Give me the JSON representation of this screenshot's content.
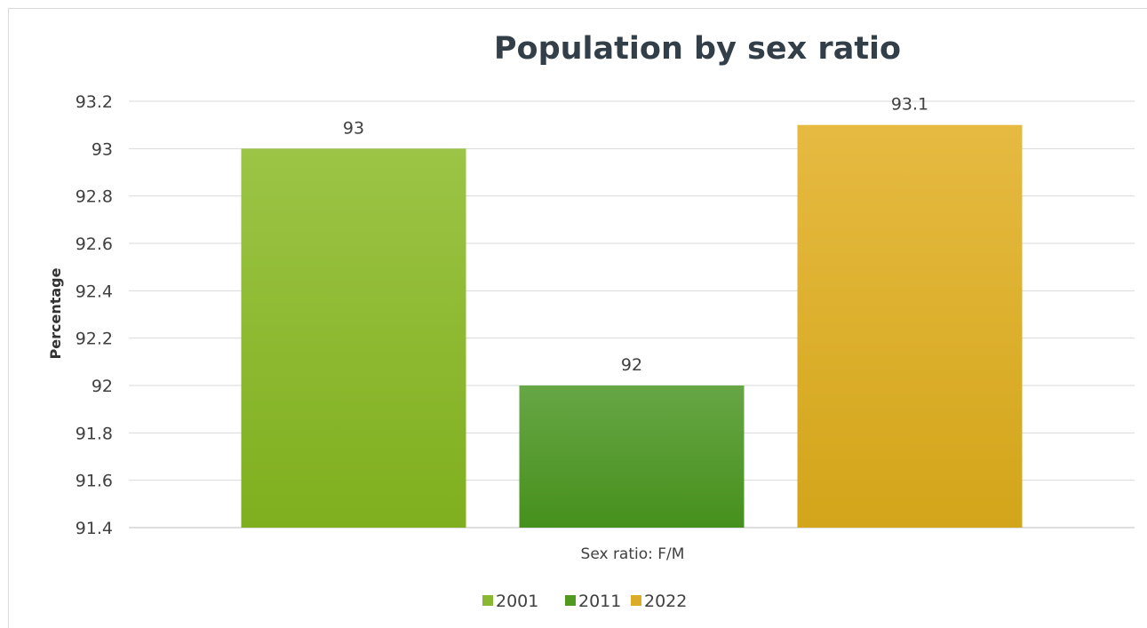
{
  "chart_data": {
    "type": "bar",
    "title": "Population by sex ratio",
    "xlabel": "Sex ratio: F/M",
    "ylabel": "Percentage",
    "categories": [
      "Sex ratio: F/M"
    ],
    "series": [
      {
        "name": "2001",
        "values": [
          93
        ],
        "color": "#8ab832"
      },
      {
        "name": "2011",
        "values": [
          92
        ],
        "color": "#52991f"
      },
      {
        "name": "2022",
        "values": [
          93.1
        ],
        "color": "#dbac25"
      }
    ],
    "ylim": [
      91.4,
      93.2
    ],
    "yticks": [
      "91.4",
      "91.6",
      "91.8",
      "92",
      "92.2",
      "92.4",
      "92.6",
      "92.8",
      "93",
      "93.2"
    ],
    "data_labels": [
      "93",
      "92",
      "93.1"
    ],
    "grid": true,
    "legend_position": "bottom"
  }
}
